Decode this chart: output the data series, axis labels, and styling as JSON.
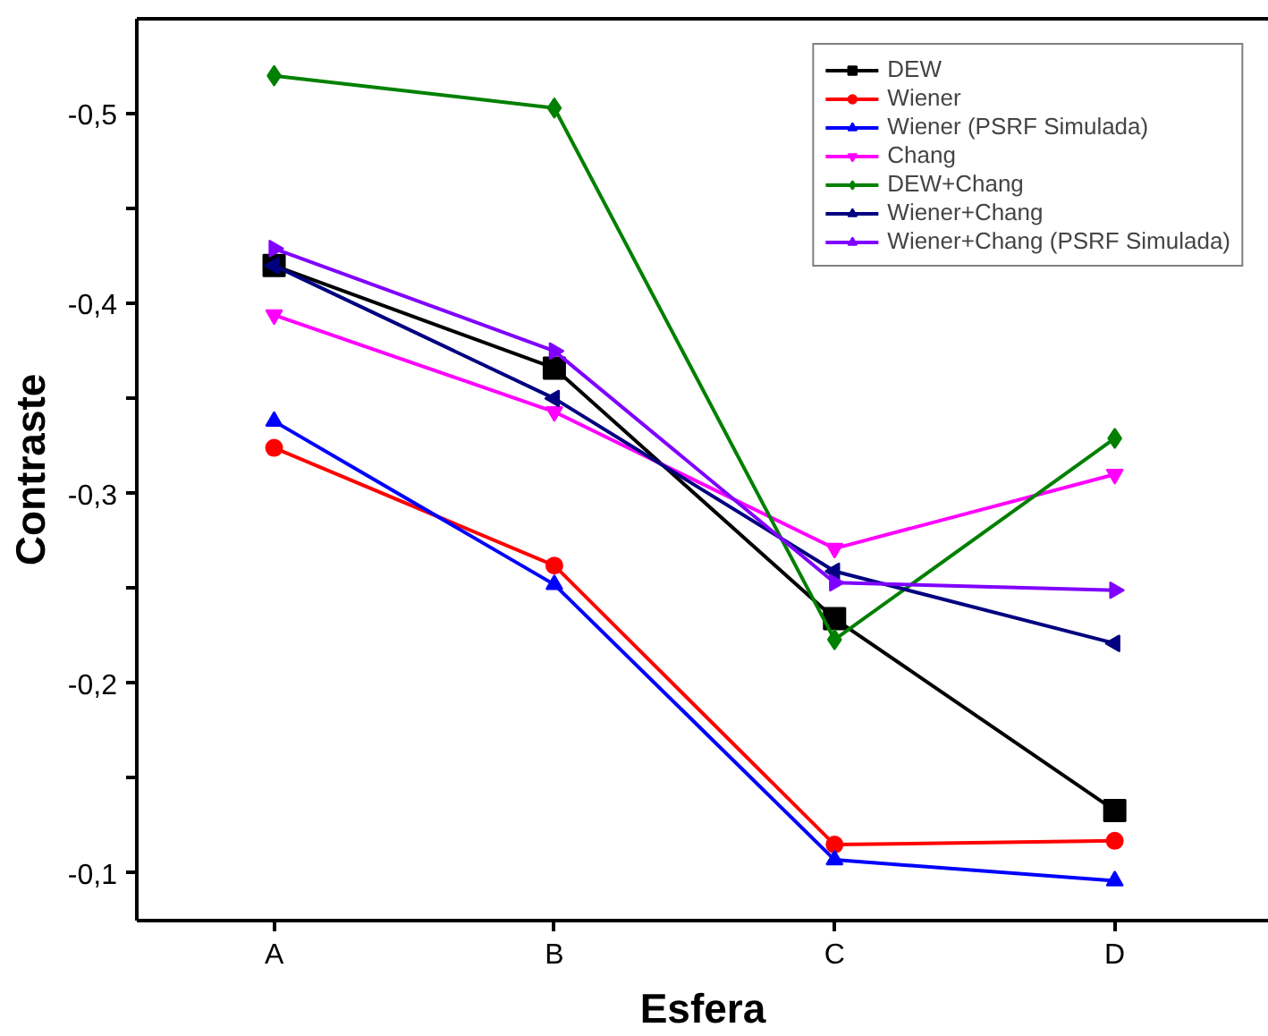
{
  "chart_data": {
    "type": "line",
    "xlabel": "Esfera",
    "ylabel": "Contraste",
    "categories": [
      "A",
      "B",
      "C",
      "D"
    ],
    "ylim": [
      -0.075,
      -0.55
    ],
    "yticks": [
      {
        "value": -0.1,
        "label": "-0,1"
      },
      {
        "value": -0.15,
        "label": null
      },
      {
        "value": -0.2,
        "label": "-0,2"
      },
      {
        "value": -0.25,
        "label": null
      },
      {
        "value": -0.3,
        "label": "-0,3"
      },
      {
        "value": -0.35,
        "label": null
      },
      {
        "value": -0.4,
        "label": "-0,4"
      },
      {
        "value": -0.45,
        "label": null
      },
      {
        "value": -0.5,
        "label": "-0,5"
      }
    ],
    "grid": false,
    "legend": "top right",
    "line_style": "solid",
    "series": [
      {
        "name": "DEW",
        "color": "#000000",
        "marker": "square",
        "values": [
          -0.42,
          -0.366,
          -0.234,
          -0.133
        ]
      },
      {
        "name": "Wiener",
        "color": "#ff0000",
        "marker": "circle",
        "values": [
          -0.324,
          -0.262,
          -0.115,
          -0.117
        ]
      },
      {
        "name": "Wiener (PSRF Simulada)",
        "color": "#0000ff",
        "marker": "triangle",
        "values": [
          -0.338,
          -0.252,
          -0.107,
          -0.096
        ]
      },
      {
        "name": "Chang",
        "color": "#ff00ff",
        "marker": "triangle_down",
        "values": [
          -0.394,
          -0.343,
          -0.271,
          -0.31
        ]
      },
      {
        "name": "DEW+Chang",
        "color": "#008000",
        "marker": "diamond",
        "values": [
          -0.52,
          -0.503,
          -0.223,
          -0.329
        ]
      },
      {
        "name": "Wiener+Chang",
        "color": "#000080",
        "marker": "triangle_left",
        "values": [
          -0.42,
          -0.35,
          -0.259,
          -0.221
        ]
      },
      {
        "name": "Wiener+Chang (PSRF Simulada)",
        "color": "#8000ff",
        "marker": "triangle_right",
        "values": [
          -0.429,
          -0.375,
          -0.253,
          -0.249
        ]
      }
    ]
  }
}
